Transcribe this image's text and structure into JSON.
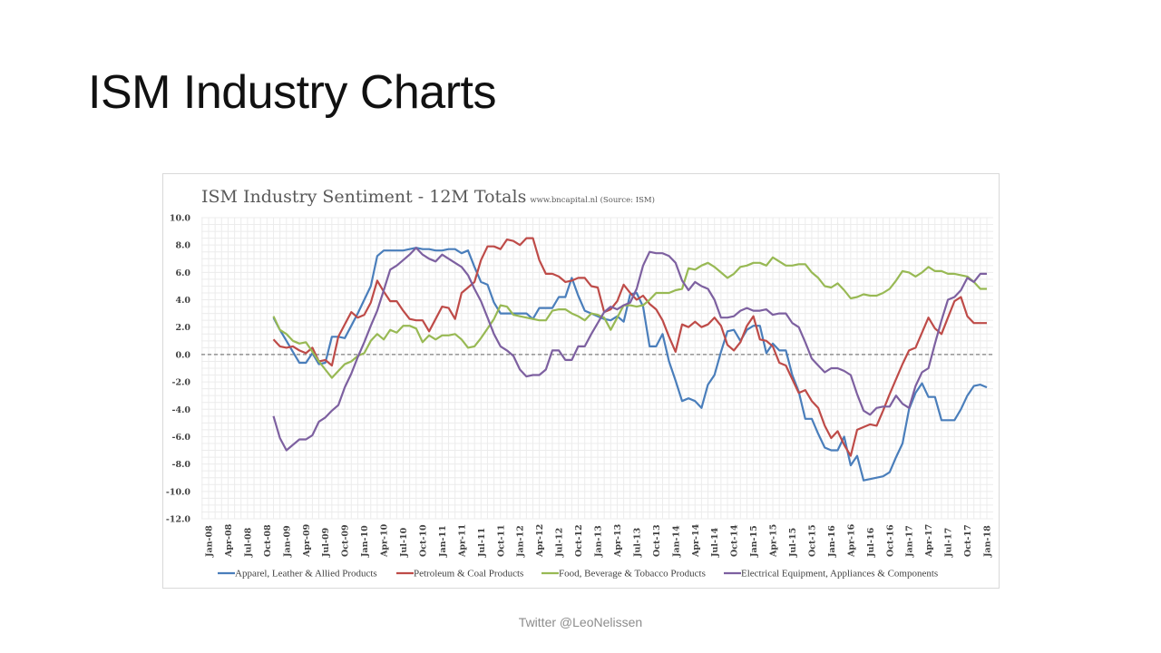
{
  "slide": {
    "title": "ISM Industry Charts",
    "footer": "Twitter @LeoNelissen"
  },
  "chart_data": {
    "type": "line",
    "title": "ISM Industry Sentiment - 12M Totals",
    "subtitle": "www.bncapital.nl (Source: ISM)",
    "xlabel": "",
    "ylabel": "",
    "ylim": [
      -12,
      10
    ],
    "yticks": [
      "10.0",
      "8.0",
      "6.0",
      "4.0",
      "2.0",
      "0.0",
      "-2.0",
      "-4.0",
      "-6.0",
      "-8.0",
      "-10.0",
      "-12.0"
    ],
    "xticks": [
      "Jan-08",
      "Apr-08",
      "Jul-08",
      "Oct-08",
      "Jan-09",
      "Apr-09",
      "Jul-09",
      "Oct-09",
      "Jan-10",
      "Apr-10",
      "Jul-10",
      "Oct-10",
      "Jan-11",
      "Apr-11",
      "Jul-11",
      "Oct-11",
      "Jan-12",
      "Apr-12",
      "Jul-12",
      "Oct-12",
      "Jan-13",
      "Apr-13",
      "Jul-13",
      "Oct-13",
      "Jan-14",
      "Apr-14",
      "Jul-14",
      "Oct-14",
      "Jan-15",
      "Apr-15",
      "Jul-15",
      "Oct-15",
      "Jan-16",
      "Apr-16",
      "Jul-16",
      "Oct-16",
      "Jan-17",
      "Apr-17",
      "Jul-17",
      "Oct-17",
      "Jan-18"
    ],
    "grid": true,
    "zero_line": "dashed",
    "legend_position": "bottom",
    "x": [
      "Nov-08",
      "Dec-08",
      "Jan-09",
      "Feb-09",
      "Mar-09",
      "Apr-09",
      "May-09",
      "Jun-09",
      "Jul-09",
      "Aug-09",
      "Sep-09",
      "Oct-09",
      "Nov-09",
      "Dec-09",
      "Jan-10",
      "Feb-10",
      "Mar-10",
      "Apr-10",
      "May-10",
      "Jun-10",
      "Jul-10",
      "Aug-10",
      "Sep-10",
      "Oct-10",
      "Nov-10",
      "Dec-10",
      "Jan-11",
      "Feb-11",
      "Mar-11",
      "Apr-11",
      "May-11",
      "Jun-11",
      "Jul-11",
      "Aug-11",
      "Sep-11",
      "Oct-11",
      "Nov-11",
      "Dec-11",
      "Jan-12",
      "Feb-12",
      "Mar-12",
      "Apr-12",
      "May-12",
      "Jun-12",
      "Jul-12",
      "Aug-12",
      "Sep-12",
      "Oct-12",
      "Nov-12",
      "Dec-12",
      "Jan-13",
      "Feb-13",
      "Mar-13",
      "Apr-13",
      "May-13",
      "Jun-13",
      "Jul-13",
      "Aug-13",
      "Sep-13",
      "Oct-13",
      "Nov-13",
      "Dec-13",
      "Jan-14",
      "Feb-14",
      "Mar-14",
      "Apr-14",
      "May-14",
      "Jun-14",
      "Jul-14",
      "Aug-14",
      "Sep-14",
      "Oct-14",
      "Nov-14",
      "Dec-14",
      "Jan-15",
      "Feb-15",
      "Mar-15",
      "Apr-15",
      "May-15",
      "Jun-15",
      "Jul-15",
      "Aug-15",
      "Sep-15",
      "Oct-15",
      "Nov-15",
      "Dec-15",
      "Jan-16",
      "Feb-16",
      "Mar-16",
      "Apr-16",
      "May-16",
      "Jun-16",
      "Jul-16",
      "Aug-16",
      "Sep-16",
      "Oct-16",
      "Nov-16",
      "Dec-16",
      "Jan-17",
      "Feb-17",
      "Mar-17",
      "Apr-17",
      "May-17",
      "Jun-17",
      "Jul-17",
      "Aug-17",
      "Sep-17",
      "Oct-17",
      "Nov-17",
      "Dec-17",
      "Jan-18"
    ],
    "series": [
      {
        "name": "Apparel, Leather & Allied Products",
        "color": "#4a7ebb",
        "values": [
          2.7,
          1.8,
          1.0,
          0.2,
          -0.6,
          -0.6,
          0.1,
          -0.7,
          -0.6,
          1.3,
          1.3,
          1.2,
          2.1,
          3.0,
          4.0,
          5.0,
          7.2,
          7.6,
          7.6,
          7.6,
          7.6,
          7.7,
          7.8,
          7.7,
          7.7,
          7.6,
          7.6,
          7.7,
          7.7,
          7.4,
          7.6,
          6.4,
          5.3,
          5.1,
          3.8,
          3.0,
          3.0,
          3.0,
          3.0,
          3.0,
          2.6,
          3.4,
          3.4,
          3.4,
          4.2,
          4.2,
          5.6,
          4.3,
          3.2,
          3.0,
          2.8,
          2.6,
          2.5,
          2.8,
          2.4,
          4.4,
          4.5,
          3.5,
          0.6,
          0.6,
          1.5,
          -0.5,
          -1.9,
          -3.4,
          -3.2,
          -3.4,
          -3.9,
          -2.2,
          -1.5,
          0.2,
          1.7,
          1.8,
          1.0,
          1.8,
          2.1,
          2.1,
          0.1,
          0.8,
          0.3,
          0.3,
          -1.5,
          -2.7,
          -4.7,
          -4.7,
          -5.8,
          -6.8,
          -7.0,
          -7.0,
          -6.0,
          -8.1,
          -7.4,
          -9.2,
          -9.1,
          -9.0,
          -8.9,
          -8.6,
          -7.5,
          -6.5,
          -4.0,
          -2.8,
          -2.1,
          -3.1,
          -3.1,
          -4.8,
          -4.8,
          -4.8,
          -4.0,
          -3.0,
          -2.3,
          -2.2,
          -2.4
        ]
      },
      {
        "name": "Petroleum & Coal Products",
        "color": "#be4b48",
        "values": [
          1.1,
          0.6,
          0.5,
          0.6,
          0.3,
          0.1,
          0.5,
          -0.5,
          -0.4,
          -0.8,
          1.3,
          2.2,
          3.1,
          2.7,
          2.9,
          3.8,
          5.4,
          4.6,
          3.9,
          3.9,
          3.2,
          2.6,
          2.5,
          2.5,
          1.7,
          2.6,
          3.5,
          3.4,
          2.6,
          4.5,
          4.9,
          5.3,
          6.9,
          7.9,
          7.9,
          7.7,
          8.4,
          8.3,
          8.0,
          8.5,
          8.5,
          6.9,
          5.9,
          5.9,
          5.7,
          5.3,
          5.4,
          5.6,
          5.6,
          5.0,
          4.9,
          3.1,
          3.3,
          3.9,
          5.1,
          4.5,
          4.0,
          4.3,
          3.7,
          3.3,
          2.5,
          1.3,
          0.2,
          2.2,
          2.0,
          2.4,
          2.0,
          2.2,
          2.7,
          2.1,
          0.7,
          0.3,
          0.9,
          2.1,
          2.8,
          1.1,
          1.0,
          0.6,
          -0.6,
          -0.8,
          -1.8,
          -2.8,
          -2.6,
          -3.4,
          -3.9,
          -5.2,
          -6.1,
          -5.6,
          -6.6,
          -7.4,
          -5.5,
          -5.3,
          -5.1,
          -5.2,
          -4.1,
          -2.9,
          -1.8,
          -0.7,
          0.3,
          0.5,
          1.6,
          2.7,
          1.9,
          1.5,
          2.7,
          3.9,
          4.2,
          2.8,
          2.3,
          2.3,
          2.3
        ]
      },
      {
        "name": "Food, Beverage & Tobacco Products",
        "color": "#98b954",
        "values": [
          2.8,
          1.8,
          1.5,
          1.0,
          0.8,
          0.9,
          0.2,
          -0.5,
          -1.1,
          -1.7,
          -1.2,
          -0.7,
          -0.5,
          -0.1,
          0.1,
          1.0,
          1.5,
          1.1,
          1.8,
          1.6,
          2.1,
          2.1,
          1.9,
          0.9,
          1.4,
          1.1,
          1.4,
          1.4,
          1.5,
          1.1,
          0.5,
          0.6,
          1.2,
          1.9,
          2.6,
          3.6,
          3.5,
          2.9,
          2.8,
          2.7,
          2.6,
          2.5,
          2.5,
          3.2,
          3.3,
          3.3,
          3.0,
          2.8,
          2.5,
          3.0,
          2.9,
          2.7,
          1.8,
          2.7,
          3.6,
          3.6,
          3.5,
          3.6,
          4.0,
          4.5,
          4.5,
          4.5,
          4.7,
          4.8,
          6.3,
          6.2,
          6.5,
          6.7,
          6.4,
          6.0,
          5.6,
          5.9,
          6.4,
          6.5,
          6.7,
          6.7,
          6.5,
          7.1,
          6.8,
          6.5,
          6.5,
          6.6,
          6.6,
          6.0,
          5.6,
          5.0,
          4.9,
          5.2,
          4.7,
          4.1,
          4.2,
          4.4,
          4.3,
          4.3,
          4.5,
          4.8,
          5.4,
          6.1,
          6.0,
          5.7,
          6.0,
          6.4,
          6.1,
          6.1,
          5.9,
          5.9,
          5.8,
          5.7,
          5.3,
          4.8,
          4.8
        ]
      },
      {
        "name": "Electrical Equipment, Appliances & Components",
        "color": "#7d60a0",
        "values": [
          -4.5,
          -6.1,
          -7.0,
          -6.6,
          -6.2,
          -6.2,
          -5.9,
          -4.9,
          -4.6,
          -4.1,
          -3.7,
          -2.4,
          -1.4,
          -0.2,
          0.9,
          2.1,
          3.2,
          4.7,
          6.2,
          6.5,
          6.9,
          7.3,
          7.8,
          7.3,
          7.0,
          6.8,
          7.3,
          7.0,
          6.7,
          6.4,
          5.8,
          4.8,
          3.9,
          2.7,
          1.5,
          0.6,
          0.3,
          -0.1,
          -1.1,
          -1.6,
          -1.5,
          -1.5,
          -1.1,
          0.3,
          0.3,
          -0.4,
          -0.4,
          0.6,
          0.6,
          1.5,
          2.3,
          3.1,
          3.5,
          3.3,
          3.6,
          3.8,
          4.8,
          6.5,
          7.5,
          7.4,
          7.4,
          7.2,
          6.7,
          5.4,
          4.7,
          5.3,
          5.0,
          4.8,
          4.0,
          2.7,
          2.7,
          2.8,
          3.2,
          3.4,
          3.2,
          3.2,
          3.3,
          2.9,
          3.0,
          3.0,
          2.3,
          2.0,
          0.9,
          -0.3,
          -0.8,
          -1.3,
          -1.0,
          -1.0,
          -1.2,
          -1.5,
          -2.9,
          -4.1,
          -4.4,
          -3.9,
          -3.8,
          -3.8,
          -3.0,
          -3.6,
          -3.9,
          -2.3,
          -1.3,
          -1.0,
          0.8,
          2.5,
          4.0,
          4.2,
          4.7,
          5.6,
          5.3,
          5.9,
          5.9
        ]
      }
    ]
  }
}
